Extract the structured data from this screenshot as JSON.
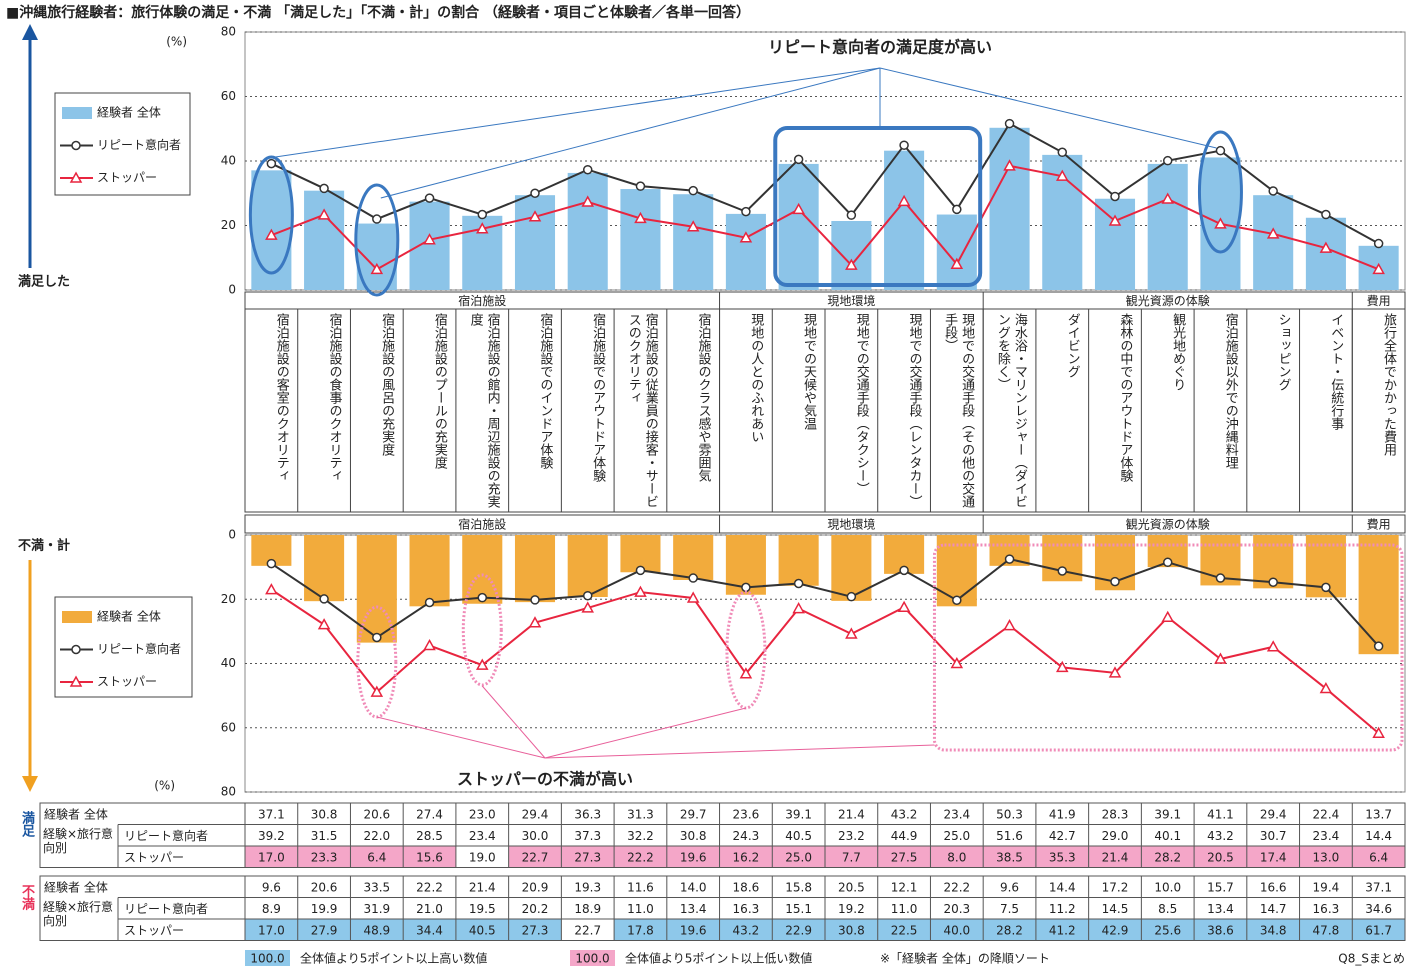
{
  "title": "■沖縄旅行経験者：旅行体験の満足・不満 「満足した」「不満・計」の割合 （経験者・項目ごと体験者／各単一回答）",
  "chart_data": [
    {
      "type": "bar",
      "ylabel": "満足した",
      "unit": "(%)",
      "annotation": "リピート意向者の満足度が高い",
      "table_label": "満足",
      "table_group_label": "経験×旅行意向別",
      "categories": [
        "宿泊施設の客室のクオリティ",
        "宿泊施設の食事のクオリティ",
        "宿泊施設の風呂の充実度",
        "宿泊施設のプールの充実度",
        "宿泊施設の館内・周辺施設の充実度",
        "宿泊施設でのインドア体験",
        "宿泊施設でのアウトドア体験",
        "宿泊施設の従業員の接客・サービスのクオリティ",
        "宿泊施設のクラス感や雰囲気",
        "現地の人とのふれあい",
        "現地での天候や気温",
        "現地での交通手段（タクシー）",
        "現地での交通手段（レンタカー）",
        "現地での交通手段（その他の交通手段）",
        "海水浴・マリンレジャー（ダイビングを除く）",
        "ダイビング",
        "森林の中でのアウトドア体験",
        "観光地めぐり",
        "宿泊施設以外での沖縄料理",
        "ショッピング",
        "イベント・伝統行事",
        "旅行全体でかかった費用"
      ],
      "groups": [
        {
          "name": "宿泊施設",
          "span": 9
        },
        {
          "name": "現地環境",
          "span": 5
        },
        {
          "name": "観光資源の体験",
          "span": 7
        },
        {
          "name": "費用",
          "span": 1
        }
      ],
      "ylim": [
        0,
        80
      ],
      "yticks": [
        0,
        20,
        40,
        60,
        80
      ],
      "grid": true,
      "legend": "left",
      "series": [
        {
          "name": "経験者 全体",
          "type": "bar",
          "color": "#8cc4e8",
          "values": [
            37.1,
            30.8,
            20.6,
            27.4,
            23.0,
            29.4,
            36.3,
            31.3,
            29.7,
            23.6,
            39.1,
            21.4,
            43.2,
            23.4,
            50.3,
            41.9,
            28.3,
            39.1,
            41.1,
            29.4,
            22.4,
            13.7
          ],
          "value_labels": [
            "37.1",
            "30.8",
            "20.6",
            "27.4",
            "23.0",
            "29.4",
            "36.3",
            "31.3",
            "29.7",
            "23.6",
            "39.1",
            "21.4",
            "43.2",
            "23.4",
            "50.3",
            "41.9",
            "28.3",
            "39.1",
            "41.1",
            "29.4",
            "22.4",
            "13.7"
          ],
          "highlight": [
            null,
            null,
            null,
            null,
            null,
            null,
            null,
            null,
            null,
            null,
            null,
            null,
            null,
            null,
            null,
            null,
            null,
            null,
            null,
            null,
            null,
            null
          ]
        },
        {
          "name": "リピート意向者",
          "type": "line",
          "marker": "circle",
          "color": "#333333",
          "values": [
            39.2,
            31.5,
            22.0,
            28.5,
            23.4,
            30.0,
            37.3,
            32.2,
            30.8,
            24.3,
            40.5,
            23.2,
            44.9,
            25.0,
            51.6,
            42.7,
            29.0,
            40.1,
            43.2,
            30.7,
            23.4,
            14.4
          ],
          "value_labels": [
            "39.2",
            "31.5",
            "22.0",
            "28.5",
            "23.4",
            "30.0",
            "37.3",
            "32.2",
            "30.8",
            "24.3",
            "40.5",
            "23.2",
            "44.9",
            "25.0",
            "51.6",
            "42.7",
            "29.0",
            "40.1",
            "43.2",
            "30.7",
            "23.4",
            "14.4"
          ],
          "highlight": [
            null,
            null,
            null,
            null,
            null,
            null,
            null,
            null,
            null,
            null,
            null,
            null,
            null,
            null,
            null,
            null,
            null,
            null,
            null,
            null,
            null,
            null
          ]
        },
        {
          "name": "ストッパー",
          "type": "line",
          "marker": "triangle",
          "color": "#e8253f",
          "values": [
            17.0,
            23.3,
            6.4,
            15.6,
            19.0,
            22.7,
            27.3,
            22.2,
            19.6,
            16.2,
            25.0,
            7.7,
            27.5,
            8.0,
            38.5,
            35.3,
            21.4,
            28.2,
            20.5,
            17.4,
            13.0,
            6.4
          ],
          "value_labels": [
            "17.0",
            "23.3",
            "6.4",
            "15.6",
            "19.0",
            "22.7",
            "27.3",
            "22.2",
            "19.6",
            "16.2",
            "25.0",
            "7.7",
            "27.5",
            "8.0",
            "38.5",
            "35.3",
            "21.4",
            "28.2",
            "20.5",
            "17.4",
            "13.0",
            "6.4"
          ],
          "highlight": [
            "#f4a6c8",
            "#f4a6c8",
            "#f4a6c8",
            "#f4a6c8",
            null,
            "#f4a6c8",
            "#f4a6c8",
            "#f4a6c8",
            "#f4a6c8",
            "#f4a6c8",
            "#f4a6c8",
            "#f4a6c8",
            "#f4a6c8",
            "#f4a6c8",
            "#f4a6c8",
            "#f4a6c8",
            "#f4a6c8",
            "#f4a6c8",
            "#f4a6c8",
            "#f4a6c8",
            "#f4a6c8",
            "#f4a6c8"
          ]
        }
      ]
    },
    {
      "type": "bar",
      "ylabel": "不満・計",
      "unit": "(%)",
      "annotation": "ストッパーの不満が高い",
      "table_label": "不満",
      "table_group_label": "経験×旅行意向別",
      "ylim": [
        80,
        0
      ],
      "yticks": [
        0,
        20,
        40,
        60,
        80
      ],
      "grid": true,
      "legend": "left",
      "series": [
        {
          "name": "経験者 全体",
          "type": "bar",
          "color": "#f2ab3c",
          "values": [
            9.6,
            20.6,
            33.5,
            22.2,
            21.4,
            20.9,
            19.3,
            11.6,
            14.0,
            18.6,
            15.8,
            20.5,
            12.1,
            22.2,
            9.6,
            14.4,
            17.2,
            10.0,
            15.7,
            16.6,
            19.4,
            37.1
          ],
          "value_labels": [
            "9.6",
            "20.6",
            "33.5",
            "22.2",
            "21.4",
            "20.9",
            "19.3",
            "11.6",
            "14.0",
            "18.6",
            "15.8",
            "20.5",
            "12.1",
            "22.2",
            "9.6",
            "14.4",
            "17.2",
            "10.0",
            "15.7",
            "16.6",
            "19.4",
            "37.1"
          ],
          "highlight": [
            null,
            null,
            null,
            null,
            null,
            null,
            null,
            null,
            null,
            null,
            null,
            null,
            null,
            null,
            null,
            null,
            null,
            null,
            null,
            null,
            null,
            null
          ]
        },
        {
          "name": "リピート意向者",
          "type": "line",
          "marker": "circle",
          "color": "#333333",
          "values": [
            8.9,
            19.9,
            31.9,
            21.0,
            19.5,
            20.2,
            18.9,
            11.0,
            13.4,
            16.3,
            15.1,
            19.2,
            11.0,
            20.3,
            7.5,
            11.2,
            14.5,
            8.5,
            13.4,
            14.7,
            16.3,
            34.6
          ],
          "value_labels": [
            "8.9",
            "19.9",
            "31.9",
            "21.0",
            "19.5",
            "20.2",
            "18.9",
            "11.0",
            "13.4",
            "16.3",
            "15.1",
            "19.2",
            "11.0",
            "20.3",
            "7.5",
            "11.2",
            "14.5",
            "8.5",
            "13.4",
            "14.7",
            "16.3",
            "34.6"
          ],
          "highlight": [
            null,
            null,
            null,
            null,
            null,
            null,
            null,
            null,
            null,
            null,
            null,
            null,
            null,
            null,
            null,
            null,
            null,
            null,
            null,
            null,
            null,
            null
          ]
        },
        {
          "name": "ストッパー",
          "type": "line",
          "marker": "triangle",
          "color": "#e8253f",
          "values": [
            17.0,
            27.9,
            48.9,
            34.4,
            40.5,
            27.3,
            22.7,
            17.8,
            19.6,
            43.2,
            22.9,
            30.8,
            22.5,
            40.0,
            28.2,
            41.2,
            42.9,
            25.6,
            38.6,
            34.8,
            47.8,
            61.7
          ],
          "value_labels": [
            "17.0",
            "27.9",
            "48.9",
            "34.4",
            "40.5",
            "27.3",
            "22.7",
            "17.8",
            "19.6",
            "43.2",
            "22.9",
            "30.8",
            "22.5",
            "40.0",
            "28.2",
            "41.2",
            "42.9",
            "25.6",
            "38.6",
            "34.8",
            "47.8",
            "61.7"
          ],
          "highlight": [
            "#8ec8ea",
            "#8ec8ea",
            "#8ec8ea",
            "#8ec8ea",
            "#8ec8ea",
            "#8ec8ea",
            null,
            "#8ec8ea",
            "#8ec8ea",
            "#8ec8ea",
            "#8ec8ea",
            "#8ec8ea",
            "#8ec8ea",
            "#8ec8ea",
            "#8ec8ea",
            "#8ec8ea",
            "#8ec8ea",
            "#8ec8ea",
            "#8ec8ea",
            "#8ec8ea",
            "#8ec8ea",
            "#8ec8ea"
          ]
        }
      ]
    }
  ],
  "notes": [
    {
      "swatch": "100.0",
      "color": "#8ec8ea",
      "text": "全体値より5ポイント以上高い数値"
    },
    {
      "swatch": "100.0",
      "color": "#f4a6c8",
      "text": "全体値より5ポイント以上低い数値"
    }
  ],
  "sort_note": "※「経験者 全体」の降順ソート",
  "source": "Q8_Sまとめ"
}
